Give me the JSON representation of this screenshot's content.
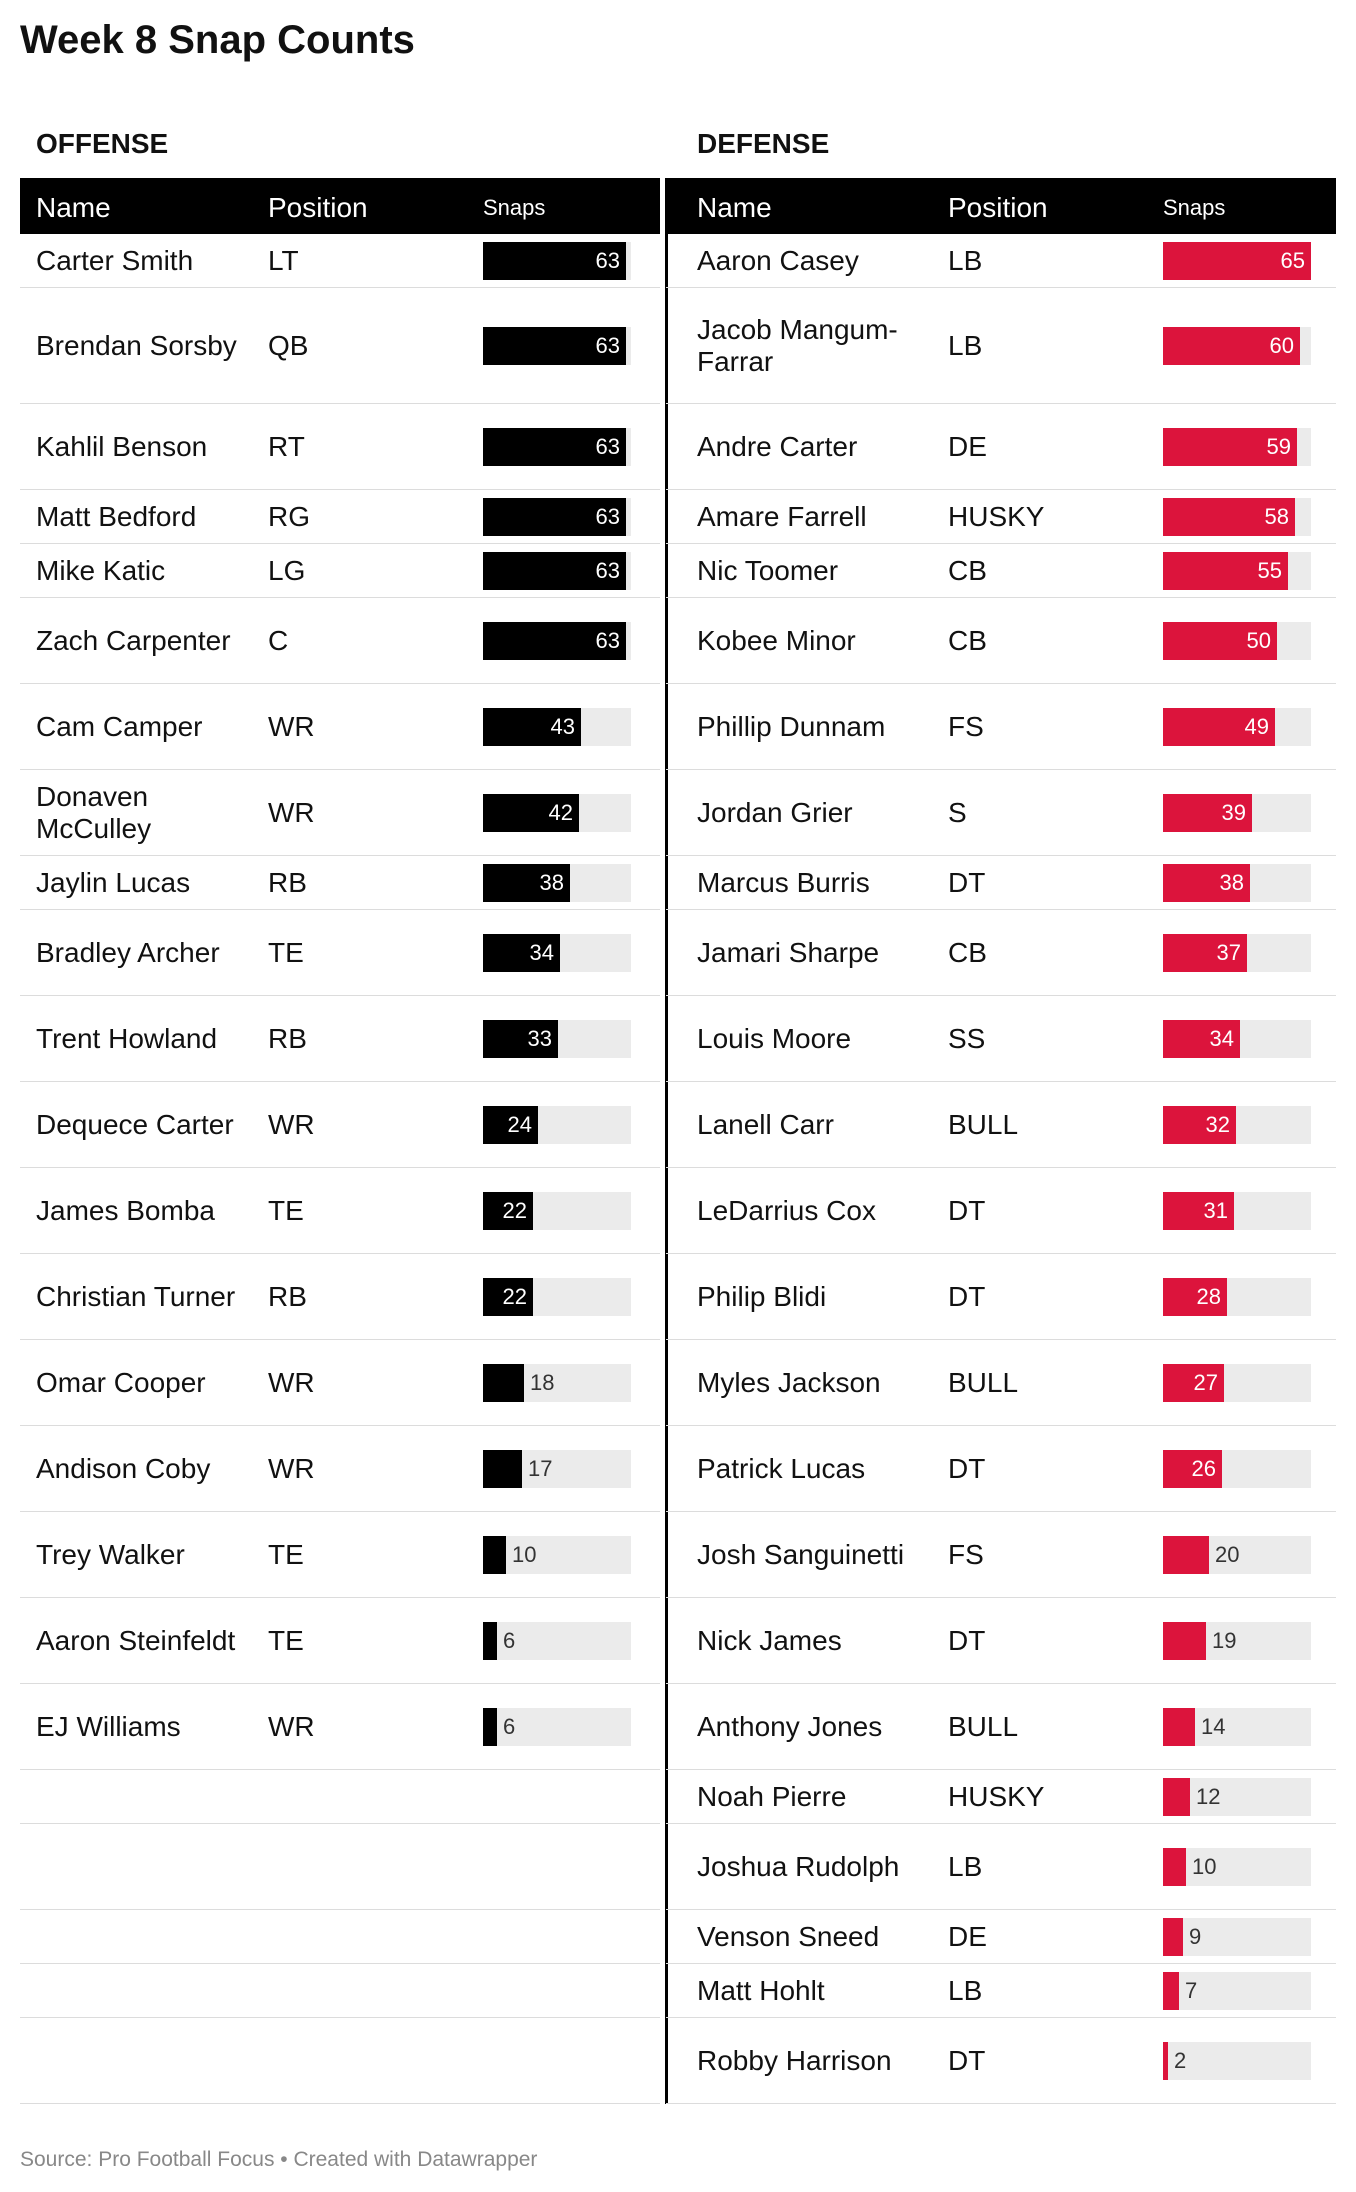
{
  "title": "Week 8 Snap Counts",
  "offense": {
    "section_title": "OFFENSE",
    "headers": {
      "name": "Name",
      "position": "Position",
      "snaps": "Snaps"
    },
    "bar_color": "#000000"
  },
  "defense": {
    "section_title": "DEFENSE",
    "headers": {
      "name": "Name",
      "position": "Position",
      "snaps": "Snaps"
    },
    "bar_color": "#dc143c"
  },
  "footer": "Source: Pro Football Focus • Created with Datawrapper",
  "chart_data": [
    {
      "type": "table",
      "title": "OFFENSE",
      "columns": [
        "Name",
        "Position",
        "Snaps"
      ],
      "max_snaps": 65,
      "rows": [
        {
          "name": "Carter Smith",
          "position": "LT",
          "snaps": 63
        },
        {
          "name": "Brendan Sorsby",
          "position": "QB",
          "snaps": 63
        },
        {
          "name": "Kahlil Benson",
          "position": "RT",
          "snaps": 63
        },
        {
          "name": "Matt Bedford",
          "position": "RG",
          "snaps": 63
        },
        {
          "name": "Mike Katic",
          "position": "LG",
          "snaps": 63
        },
        {
          "name": "Zach Carpenter",
          "position": "C",
          "snaps": 63
        },
        {
          "name": "Cam Camper",
          "position": "WR",
          "snaps": 43
        },
        {
          "name": "Donaven McCulley",
          "position": "WR",
          "snaps": 42
        },
        {
          "name": "Jaylin Lucas",
          "position": "RB",
          "snaps": 38
        },
        {
          "name": "Bradley Archer",
          "position": "TE",
          "snaps": 34
        },
        {
          "name": "Trent Howland",
          "position": "RB",
          "snaps": 33
        },
        {
          "name": "Dequece Carter",
          "position": "WR",
          "snaps": 24
        },
        {
          "name": "James Bomba",
          "position": "TE",
          "snaps": 22
        },
        {
          "name": "Christian Turner",
          "position": "RB",
          "snaps": 22
        },
        {
          "name": "Omar Cooper",
          "position": "WR",
          "snaps": 18
        },
        {
          "name": "Andison Coby",
          "position": "WR",
          "snaps": 17
        },
        {
          "name": "Trey Walker",
          "position": "TE",
          "snaps": 10
        },
        {
          "name": "Aaron Steinfeldt",
          "position": "TE",
          "snaps": 6
        },
        {
          "name": "EJ Williams",
          "position": "WR",
          "snaps": 6
        }
      ]
    },
    {
      "type": "table",
      "title": "DEFENSE",
      "columns": [
        "Name",
        "Position",
        "Snaps"
      ],
      "max_snaps": 65,
      "rows": [
        {
          "name": "Aaron Casey",
          "position": "LB",
          "snaps": 65
        },
        {
          "name": "Jacob Mangum-Farrar",
          "position": "LB",
          "snaps": 60
        },
        {
          "name": "Andre Carter",
          "position": "DE",
          "snaps": 59
        },
        {
          "name": "Amare Farrell",
          "position": "HUSKY",
          "snaps": 58
        },
        {
          "name": "Nic Toomer",
          "position": "CB",
          "snaps": 55
        },
        {
          "name": "Kobee Minor",
          "position": "CB",
          "snaps": 50
        },
        {
          "name": "Phillip Dunnam",
          "position": "FS",
          "snaps": 49
        },
        {
          "name": "Jordan Grier",
          "position": "S",
          "snaps": 39
        },
        {
          "name": "Marcus Burris",
          "position": "DT",
          "snaps": 38
        },
        {
          "name": "Jamari Sharpe",
          "position": "CB",
          "snaps": 37
        },
        {
          "name": "Louis Moore",
          "position": "SS",
          "snaps": 34
        },
        {
          "name": "Lanell Carr",
          "position": "BULL",
          "snaps": 32
        },
        {
          "name": "LeDarrius Cox",
          "position": "DT",
          "snaps": 31
        },
        {
          "name": "Philip Blidi",
          "position": "DT",
          "snaps": 28
        },
        {
          "name": "Myles Jackson",
          "position": "BULL",
          "snaps": 27
        },
        {
          "name": "Patrick Lucas",
          "position": "DT",
          "snaps": 26
        },
        {
          "name": "Josh Sanguinetti",
          "position": "FS",
          "snaps": 20
        },
        {
          "name": "Nick James",
          "position": "DT",
          "snaps": 19
        },
        {
          "name": "Anthony Jones",
          "position": "BULL",
          "snaps": 14
        },
        {
          "name": "Noah Pierre",
          "position": "HUSKY",
          "snaps": 12
        },
        {
          "name": "Joshua Rudolph",
          "position": "LB",
          "snaps": 10
        },
        {
          "name": "Venson Sneed",
          "position": "DE",
          "snaps": 9
        },
        {
          "name": "Matt Hohlt",
          "position": "LB",
          "snaps": 7
        },
        {
          "name": "Robby Harrison",
          "position": "DT",
          "snaps": 2
        }
      ]
    }
  ]
}
